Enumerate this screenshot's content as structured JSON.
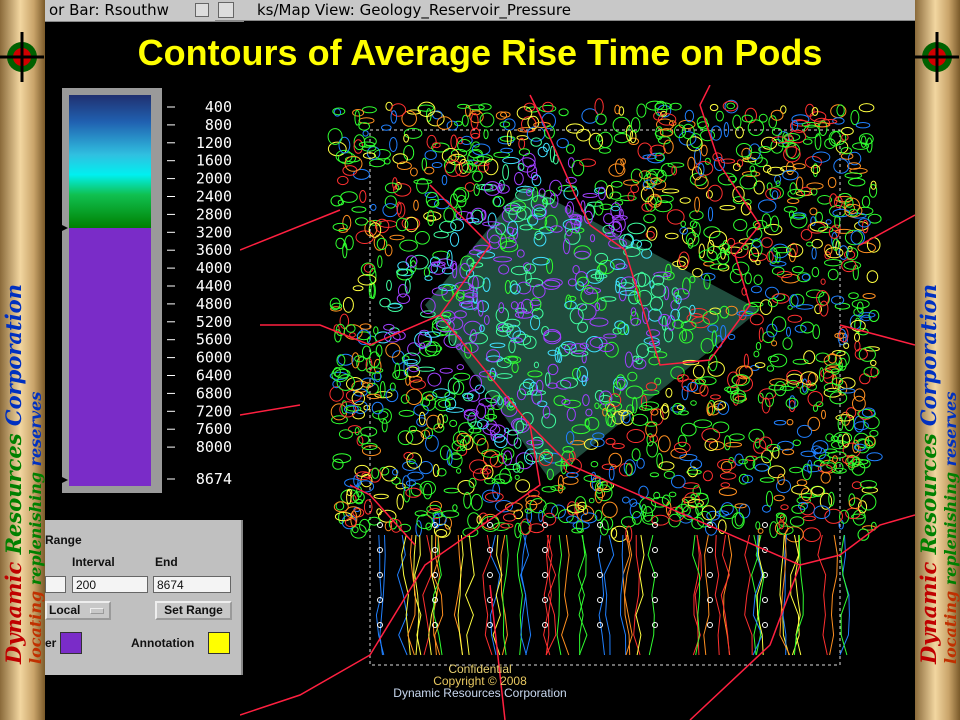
{
  "window_titles": [
    "or Bar: Rsouthw",
    "ks/Map View: Geology_Reservoir_Pressure"
  ],
  "title": "Contours of Average Rise Time on Pods",
  "colorbar": {
    "labels": [
      "400",
      "800",
      "1200",
      "1600",
      "2000",
      "2400",
      "2800",
      "3200",
      "3600",
      "4000",
      "4400",
      "4800",
      "5200",
      "5600",
      "6000",
      "6400",
      "6800",
      "7200",
      "7600",
      "8000",
      "8674"
    ]
  },
  "range_panel": {
    "heading": "Range",
    "interval_label": "Interval",
    "end_label": "End",
    "interval_value": "200",
    "end_value": "8674",
    "mode": "Local",
    "set_range": "Set Range",
    "color_label": "er",
    "annotation_label": "Annotation"
  },
  "footer": [
    "Confidential",
    "Copyright © 2008",
    "Dynamic Resources Corporation"
  ],
  "banner": {
    "company_words": [
      "Dynamic",
      "Resources",
      "Corporation"
    ],
    "tagline_words": [
      "locating",
      "replenishing",
      "reserves"
    ]
  }
}
